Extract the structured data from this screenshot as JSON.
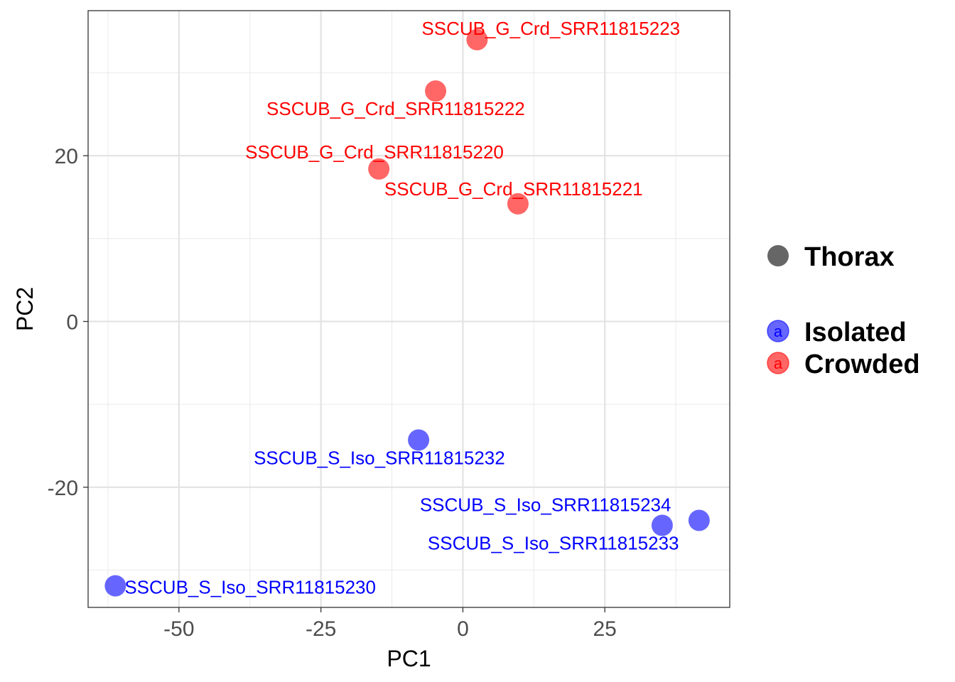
{
  "chart_data": {
    "type": "scatter",
    "title": "",
    "xlabel": "PC1",
    "ylabel": "PC2",
    "xlim": [
      -66,
      47
    ],
    "ylim": [
      -34.5,
      37.5
    ],
    "x_ticks": [
      -50,
      -25,
      0,
      25
    ],
    "x_tick_labels": [
      "-50",
      "-25",
      "0",
      "25"
    ],
    "y_ticks": [
      -20,
      0,
      20
    ],
    "y_tick_labels": [
      "-20",
      "0",
      "20"
    ],
    "grid": true,
    "legend_position": "right",
    "legend": {
      "shape_entries": [
        {
          "name": "Thorax",
          "color": "#666666"
        }
      ],
      "color_entries": [
        {
          "name": "Isolated",
          "color": "#0000ff"
        },
        {
          "name": "Crowded",
          "color": "#ff0000"
        }
      ]
    },
    "series": [
      {
        "name": "Crowded",
        "color": "#ff0000",
        "points": [
          {
            "label": "SSCUB_G_Crd_SRR11815223",
            "x": 2.5,
            "y": 34.0
          },
          {
            "label": "SSCUB_G_Crd_SRR11815222",
            "x": -4.8,
            "y": 27.8
          },
          {
            "label": "SSCUB_G_Crd_SRR11815220",
            "x": -14.8,
            "y": 18.4
          },
          {
            "label": "SSCUB_G_Crd_SRR11815221",
            "x": 9.7,
            "y": 14.2
          }
        ]
      },
      {
        "name": "Isolated",
        "color": "#0000ff",
        "points": [
          {
            "label": "SSCUB_S_Iso_SRR11815232",
            "x": -7.8,
            "y": -14.3
          },
          {
            "label": "SSCUB_S_Iso_SRR11815234",
            "x": 41.6,
            "y": -24.0
          },
          {
            "label": "SSCUB_S_Iso_SRR11815233",
            "x": 35.1,
            "y": -24.6
          },
          {
            "label": "SSCUB_S_Iso_SRR11815230",
            "x": -61.2,
            "y": -31.9
          }
        ]
      }
    ]
  }
}
